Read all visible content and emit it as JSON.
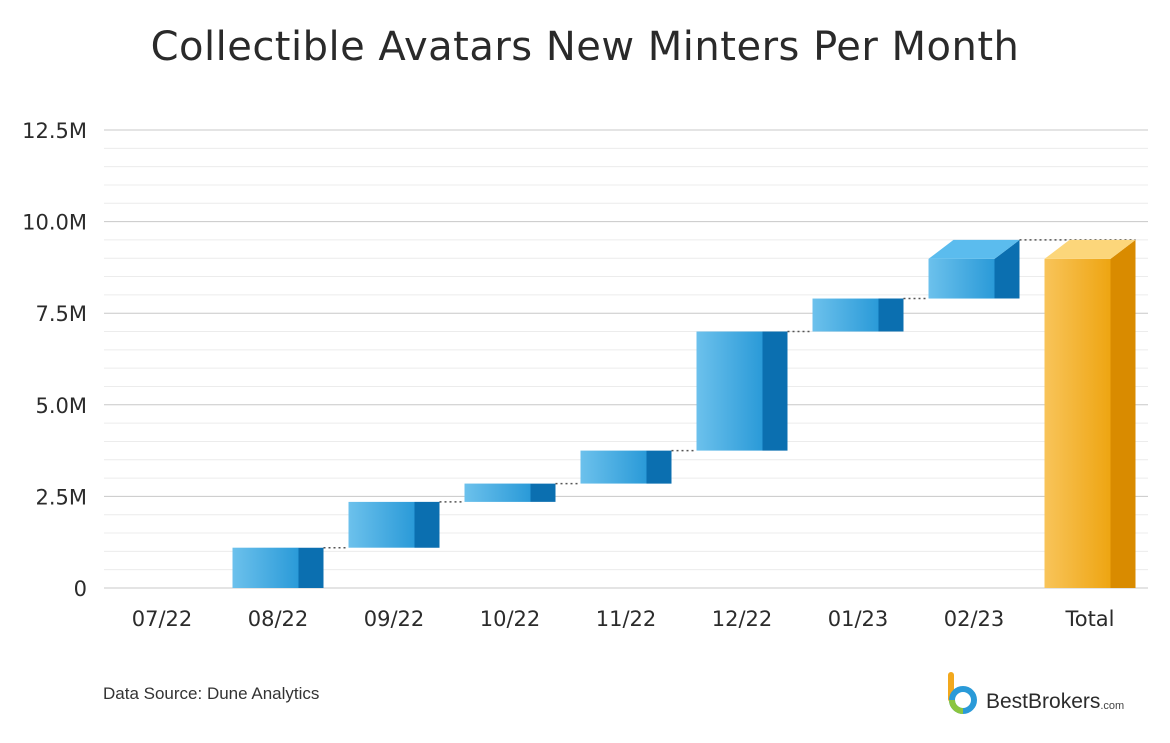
{
  "title": "Collectible Avatars New Minters Per Month",
  "source": "Data Source: Dune Analytics",
  "brand": {
    "name": "BestBrokers",
    "tld": ".com"
  },
  "colors": {
    "increase_front_light": "#6cc1ec",
    "increase_front_dark": "#2a9ad8",
    "increase_side": "#0b6fb0",
    "increase_top": "#5bbcee",
    "total_front_light": "#f8c45a",
    "total_front_dark": "#eea512",
    "total_side": "#d98b00",
    "total_top": "#fcd67a",
    "grid_major": "#c8c8c8",
    "grid_minor": "#ececec",
    "connector": "#555555"
  },
  "chart_data": {
    "type": "waterfall",
    "title": "Collectible Avatars New Minters Per Month",
    "categories": [
      "07/22",
      "08/22",
      "09/22",
      "10/22",
      "11/22",
      "12/22",
      "01/23",
      "02/23",
      "Total"
    ],
    "increments": [
      0,
      1100000,
      1250000,
      500000,
      900000,
      3250000,
      900000,
      1600000
    ],
    "total": 9500000,
    "ylim": [
      0,
      12500000
    ],
    "y_ticks": [
      0,
      2500000,
      5000000,
      7500000,
      10000000,
      12500000
    ],
    "y_tick_labels": [
      "0",
      "2.5M",
      "5.0M",
      "7.5M",
      "10.0M",
      "12.5M"
    ],
    "xlabel": "",
    "ylabel": "",
    "grid": true,
    "legend": "none"
  }
}
